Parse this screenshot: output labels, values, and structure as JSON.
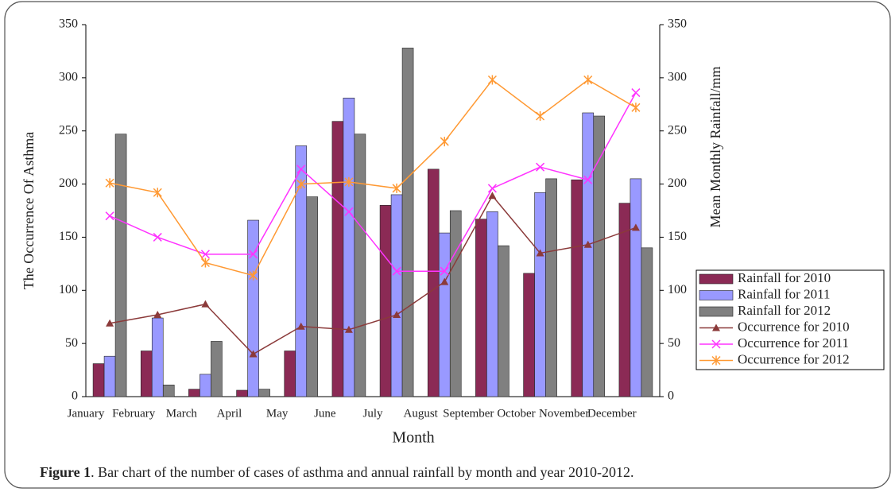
{
  "chart_data": {
    "type": "bar",
    "x_label": "Month",
    "y_label": "The Occurrence Of Asthma",
    "y2_label": "Mean Monthly Rainfall/mm",
    "categories": [
      "January",
      "February",
      "March",
      "April",
      "May",
      "June",
      "July",
      "August",
      "September",
      "October",
      "November",
      "December"
    ],
    "ylim": [
      0,
      350
    ],
    "yticks": [
      0,
      50,
      100,
      150,
      200,
      250,
      300,
      350
    ],
    "y2lim": [
      0,
      350
    ],
    "y2ticks": [
      0,
      50,
      100,
      150,
      200,
      250,
      300,
      350
    ],
    "legend": "right",
    "series": [
      {
        "name": "Rainfall for 2010",
        "type": "bar",
        "axis": "y2",
        "color": "#8b2a55",
        "values": [
          31,
          43,
          7,
          6,
          43,
          259,
          180,
          214,
          167,
          116,
          204,
          182
        ]
      },
      {
        "name": "Rainfall for 2011",
        "type": "bar",
        "axis": "y2",
        "color": "#9999ff",
        "values": [
          38,
          74,
          21,
          166,
          236,
          281,
          190,
          154,
          174,
          192,
          267,
          205
        ]
      },
      {
        "name": "Rainfall for 2012",
        "type": "bar",
        "axis": "y2",
        "color": "#808080",
        "values": [
          247,
          11,
          52,
          7,
          188,
          247,
          328,
          175,
          142,
          205,
          264,
          140
        ]
      },
      {
        "name": "Occurrence for 2010",
        "type": "line",
        "marker": "triangle",
        "color": "#8b3a3a",
        "values": [
          69,
          77,
          87,
          40,
          66,
          63,
          77,
          108,
          189,
          135,
          143,
          159
        ]
      },
      {
        "name": "Occurrence for 2011",
        "type": "line",
        "marker": "x",
        "color": "#ff33ff",
        "values": [
          170,
          150,
          134,
          134,
          214,
          174,
          118,
          118,
          196,
          216,
          204,
          286
        ]
      },
      {
        "name": "Occurrence for 2012",
        "type": "line",
        "marker": "star",
        "color": "#ff9933",
        "values": [
          201,
          192,
          126,
          114,
          200,
          202,
          196,
          240,
          298,
          264,
          298,
          272
        ]
      }
    ]
  },
  "caption": {
    "label": "Figure 1",
    "text": ". Bar chart of the number of cases of asthma and annual rainfall by month and year 2010-2012."
  }
}
